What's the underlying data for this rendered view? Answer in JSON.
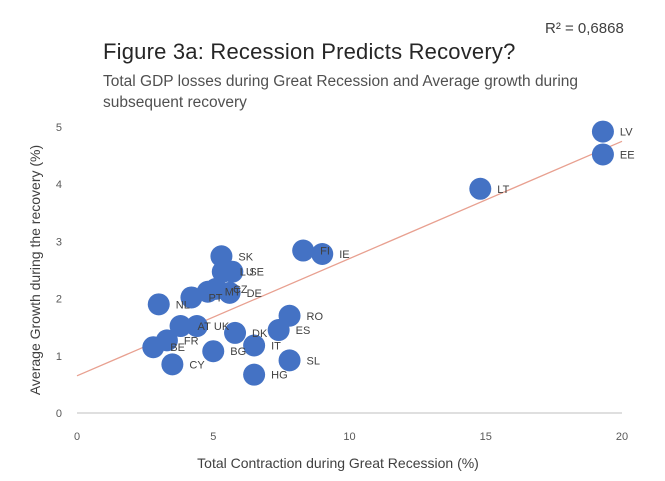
{
  "chart_data": {
    "type": "scatter",
    "title": "Figure 3a: Recession Predicts Recovery?",
    "subtitle": "Total GDP losses during Great Recession and Average growth during subsequent recovery",
    "xlabel": "Total Contraction during Great Recession (%)",
    "ylabel": "Average Growth during the recovery (%)",
    "xlim": [
      0,
      20
    ],
    "ylim": [
      0,
      5
    ],
    "xticks": [
      0,
      5,
      10,
      15,
      20
    ],
    "yticks": [
      0,
      1,
      2,
      3,
      4,
      5
    ],
    "grid": false,
    "annotation": "R² = 0,6868",
    "marker_color": "#4472C4",
    "trendline": {
      "color": "#E8A090",
      "from": [
        0,
        0.65
      ],
      "to": [
        20,
        4.75
      ]
    },
    "points": [
      {
        "label": "LV",
        "x": 19.3,
        "y": 4.92
      },
      {
        "label": "EE",
        "x": 19.3,
        "y": 4.52
      },
      {
        "label": "LT",
        "x": 14.8,
        "y": 3.92
      },
      {
        "label": "FI",
        "x": 8.3,
        "y": 2.84
      },
      {
        "label": "IE",
        "x": 9.0,
        "y": 2.78
      },
      {
        "label": "SK",
        "x": 5.3,
        "y": 2.74
      },
      {
        "label": "LU",
        "x": 5.35,
        "y": 2.47
      },
      {
        "label": "SE",
        "x": 5.7,
        "y": 2.47
      },
      {
        "label": "CZ",
        "x": 5.1,
        "y": 2.17
      },
      {
        "label": "DE",
        "x": 5.6,
        "y": 2.1
      },
      {
        "label": "MT",
        "x": 4.8,
        "y": 2.12
      },
      {
        "label": "PT",
        "x": 4.2,
        "y": 2.02
      },
      {
        "label": "NL",
        "x": 3.0,
        "y": 1.9
      },
      {
        "label": "UK",
        "x": 4.4,
        "y": 1.52
      },
      {
        "label": "AT",
        "x": 3.8,
        "y": 1.52
      },
      {
        "label": "RO",
        "x": 7.8,
        "y": 1.7
      },
      {
        "label": "DK",
        "x": 5.8,
        "y": 1.4
      },
      {
        "label": "ES",
        "x": 7.4,
        "y": 1.45
      },
      {
        "label": "IT",
        "x": 6.5,
        "y": 1.18
      },
      {
        "label": "BG",
        "x": 5.0,
        "y": 1.08
      },
      {
        "label": "SL",
        "x": 7.8,
        "y": 0.92
      },
      {
        "label": "FR",
        "x": 3.3,
        "y": 1.27
      },
      {
        "label": "BE",
        "x": 2.8,
        "y": 1.15
      },
      {
        "label": "CY",
        "x": 3.5,
        "y": 0.85
      },
      {
        "label": "HG",
        "x": 6.5,
        "y": 0.67
      }
    ]
  }
}
